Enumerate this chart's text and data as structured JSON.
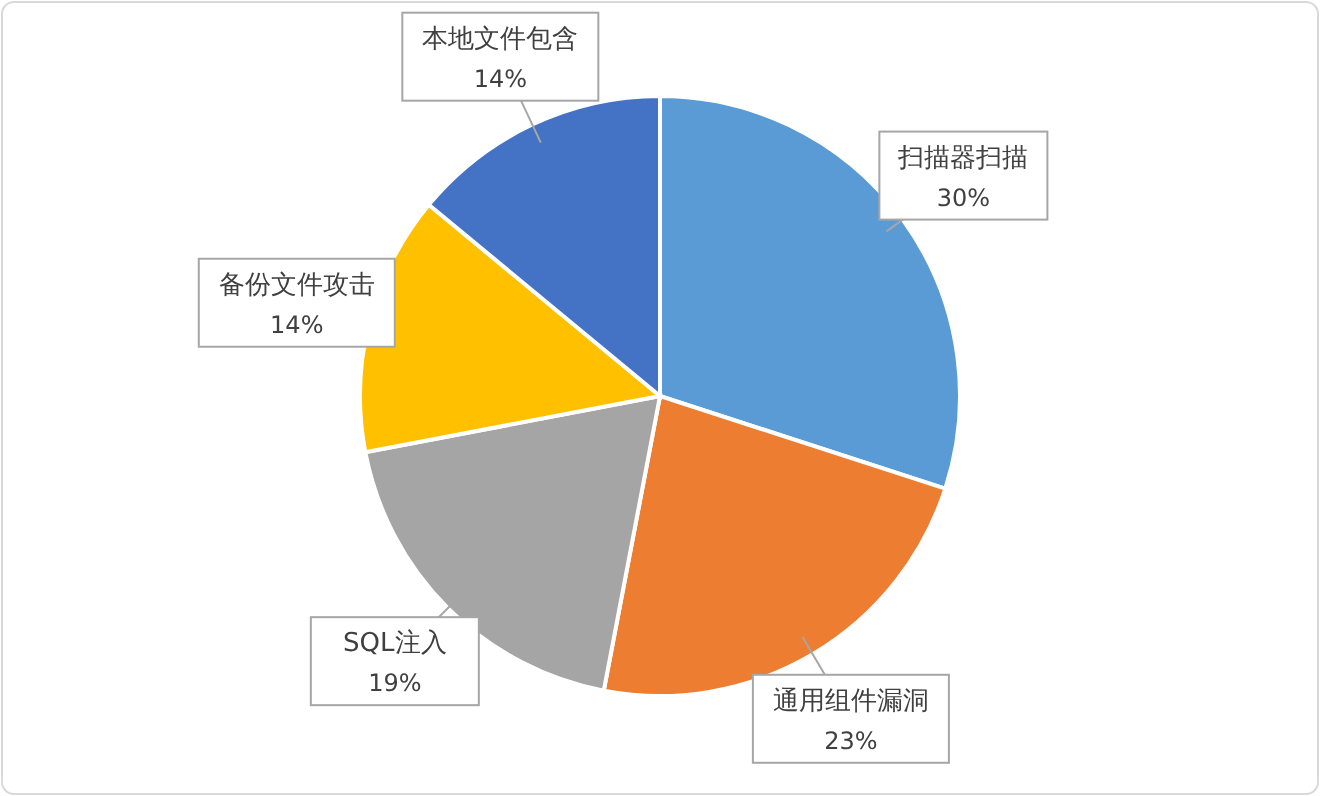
{
  "chart_data": {
    "type": "pie",
    "categories": [
      "扫描器扫描",
      "通用组件漏洞",
      "SQL注入",
      "备份文件攻击",
      "本地文件包含"
    ],
    "values": [
      30,
      23,
      19,
      14,
      14
    ],
    "colors": [
      "#5b9bd5",
      "#ed7d31",
      "#a5a5a5",
      "#ffc000",
      "#4472c4"
    ],
    "value_labels": [
      "30%",
      "23%",
      "19%",
      "14%",
      "14%"
    ]
  }
}
